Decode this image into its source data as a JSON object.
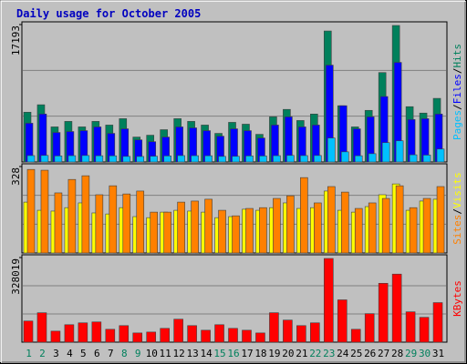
{
  "chart_data": [
    {
      "type": "bar",
      "title": "Daily usage for October 2005",
      "label_separator": "/",
      "ylim": [
        0,
        17193
      ],
      "yticks": [
        17193
      ],
      "series": [
        {
          "name": "Pages",
          "color": "#00c0ff",
          "values": [
            800,
            820,
            760,
            790,
            810,
            780,
            770,
            700,
            690,
            720,
            760,
            800,
            790,
            780,
            700,
            710,
            760,
            750,
            790,
            820,
            800,
            810,
            3000,
            1270,
            780,
            1040,
            2420,
            2650,
            900,
            860,
            1620
          ]
        },
        {
          "name": "Files",
          "color": "#0000ff",
          "values": [
            4850,
            6000,
            3690,
            3810,
            3920,
            4390,
            3580,
            4150,
            2770,
            2540,
            3120,
            4390,
            4270,
            3920,
            3230,
            4150,
            3920,
            3000,
            4620,
            5650,
            4390,
            4620,
            12120,
            7040,
            4150,
            5650,
            8190,
            12460,
            5310,
            5420,
            6000
          ]
        },
        {
          "name": "Hits",
          "color": "#00805c",
          "values": [
            6230,
            7160,
            4390,
            5080,
            4390,
            5080,
            4620,
            5420,
            3120,
            3350,
            4040,
            5420,
            5080,
            4620,
            3580,
            4960,
            4730,
            3460,
            5650,
            6580,
            5190,
            6000,
            16390,
            7040,
            4390,
            6460,
            11190,
            17080,
            6920,
            6120,
            7960
          ]
        }
      ]
    },
    {
      "type": "bar",
      "label_separator": "/",
      "ylim": [
        0,
        328
      ],
      "yticks": [
        328
      ],
      "series": [
        {
          "name": "Sites",
          "color": "#ff8000",
          "values": [
            317,
            314,
            228,
            279,
            293,
            221,
            255,
            224,
            235,
            155,
            155,
            193,
            197,
            204,
            162,
            141,
            169,
            172,
            207,
            217,
            286,
            190,
            252,
            231,
            169,
            190,
            207,
            255,
            172,
            207,
            252
          ]
        },
        {
          "name": "Visits",
          "color": "#ffff00",
          "values": [
            193,
            162,
            159,
            172,
            190,
            152,
            148,
            172,
            138,
            134,
            155,
            162,
            159,
            155,
            134,
            138,
            166,
            162,
            172,
            190,
            169,
            172,
            235,
            162,
            155,
            176,
            221,
            262,
            162,
            197,
            204
          ]
        }
      ]
    },
    {
      "type": "bar",
      "ylim": [
        0,
        328019
      ],
      "yticks": [
        328019
      ],
      "categories": [
        "1",
        "2",
        "3",
        "4",
        "5",
        "6",
        "7",
        "8",
        "9",
        "10",
        "11",
        "12",
        "13",
        "14",
        "15",
        "16",
        "17",
        "18",
        "19",
        "20",
        "21",
        "22",
        "23",
        "24",
        "25",
        "26",
        "27",
        "28",
        "29",
        "30",
        "31"
      ],
      "category_colors": [
        "#00805c",
        "#00805c",
        "#000000",
        "#000000",
        "#000000",
        "#000000",
        "#000000",
        "#00805c",
        "#00805c",
        "#000000",
        "#000000",
        "#000000",
        "#000000",
        "#000000",
        "#00805c",
        "#00805c",
        "#000000",
        "#000000",
        "#000000",
        "#000000",
        "#000000",
        "#00805c",
        "#00805c",
        "#000000",
        "#000000",
        "#000000",
        "#000000",
        "#000000",
        "#00805c",
        "#00805c",
        "#000000"
      ],
      "series": [
        {
          "name": "KBytes",
          "color": "#ff0000",
          "values": [
            82000,
            114000,
            42800,
            67700,
            74900,
            78400,
            49900,
            64200,
            35700,
            39200,
            53500,
            89100,
            64200,
            46300,
            67700,
            53500,
            46300,
            35700,
            114100,
            85600,
            64200,
            74900,
            324400,
            164000,
            49900,
            110500,
            228200,
            263800,
            117600,
            96300,
            153300
          ]
        }
      ]
    }
  ]
}
